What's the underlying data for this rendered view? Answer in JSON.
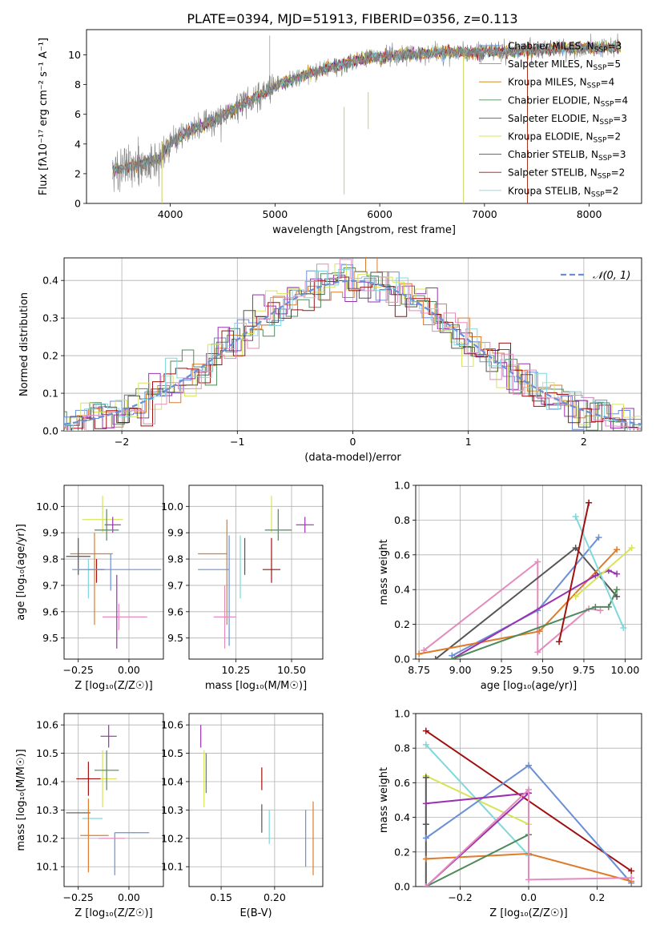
{
  "figure": {
    "title": "PLATE=0394, MJD=51913, FIBERID=0356, z=0.113",
    "series_colors": {
      "Chabrier MILES": "#6a8fd6",
      "Salpeter MILES": "#e07b2a",
      "Kroupa MILES": "#cc7a00",
      "Chabrier ELODIE": "#4f8a5b",
      "Salpeter ELODIE": "#9b30b0",
      "Kroupa ELODIE": "#d7e45a",
      "Chabrier STELIB": "#555555",
      "Salpeter STELIB": "#a01010",
      "Kroupa STELIB": "#7fd8dc",
      "pink": "#e48bbd"
    }
  },
  "chart_data": [
    {
      "id": "spectrum",
      "type": "line",
      "xlabel": "wavelength [Angstrom, rest frame]",
      "ylabel": "Flux [fλ10⁻¹⁷ erg cm⁻² s⁻¹ A⁻¹]",
      "xlim": [
        3200,
        8500
      ],
      "ylim": [
        0,
        11.7
      ],
      "xticks": [
        4000,
        5000,
        6000,
        7000,
        8000
      ],
      "yticks": [
        0,
        2,
        4,
        6,
        8,
        10
      ],
      "data_series": {
        "name": "data",
        "color": "#808080"
      },
      "continuum": {
        "x": [
          3450,
          3700,
          3900,
          4000,
          4200,
          4400,
          4700,
          4900,
          5000,
          5300,
          5600,
          5900,
          6200,
          6500,
          6800,
          7100,
          7400,
          7700,
          8000,
          8300
        ],
        "y": [
          2.3,
          2.6,
          3.0,
          4.1,
          4.9,
          5.5,
          6.7,
          7.4,
          7.9,
          8.7,
          9.3,
          9.8,
          10.0,
          10.1,
          10.2,
          10.2,
          10.3,
          10.4,
          10.5,
          10.5
        ]
      },
      "legend": [
        {
          "label": "Chabrier MILES, N",
          "sub": "SSP",
          "suffix": "=3"
        },
        {
          "label": "Salpeter MILES, N",
          "sub": "SSP",
          "suffix": "=5"
        },
        {
          "label": "Kroupa MILES, N",
          "sub": "SSP",
          "suffix": "=4"
        },
        {
          "label": "Chabrier ELODIE, N",
          "sub": "SSP",
          "suffix": "=4"
        },
        {
          "label": "Salpeter ELODIE, N",
          "sub": "SSP",
          "suffix": "=3"
        },
        {
          "label": "Kroupa ELODIE, N",
          "sub": "SSP",
          "suffix": "=2"
        },
        {
          "label": "Chabrier STELIB, N",
          "sub": "SSP",
          "suffix": "=3"
        },
        {
          "label": "Salpeter STELIB, N",
          "sub": "SSP",
          "suffix": "=2"
        },
        {
          "label": "Kroupa STELIB, N",
          "sub": "SSP",
          "suffix": "=2"
        }
      ],
      "legend_position": "upper-right",
      "grid": false
    },
    {
      "id": "residuals",
      "type": "histogram",
      "xlabel": "(data-model)/error",
      "ylabel": "Normed distribution",
      "xlim": [
        -2.5,
        2.5
      ],
      "ylim": [
        0,
        0.46
      ],
      "xticks": [
        -2,
        -1,
        0,
        1,
        2
      ],
      "yticks": [
        0.0,
        0.1,
        0.2,
        0.3,
        0.4
      ],
      "bin_width": 0.1,
      "reference_curve": {
        "label": "𝒩(0, 1)",
        "mean": 0,
        "sigma": 1,
        "color": "#6a8fd6",
        "style": "dashed"
      },
      "legend_position": "upper-right",
      "grid": true
    },
    {
      "id": "age-vs-Z",
      "type": "errorbar",
      "xlabel": "Z [log₁₀(Z/Z☉)]",
      "ylabel": "age  [log₁₀(age/yr)]",
      "xlim": [
        -0.32,
        0.17
      ],
      "ylim": [
        9.42,
        10.08
      ],
      "xticks": [
        -0.25,
        0.0
      ],
      "xticklabels": [
        "−0.25",
        "0.00"
      ],
      "yticks": [
        9.5,
        9.6,
        9.7,
        9.8,
        9.9,
        10.0
      ],
      "grid": true,
      "points": [
        {
          "s": "Kroupa ELODIE",
          "x": -0.13,
          "xerr": [
            0.1,
            0.1
          ],
          "y": 9.95,
          "yerr": [
            0.05,
            0.09
          ]
        },
        {
          "s": "Salpeter ELODIE",
          "x": -0.08,
          "xerr": [
            0.04,
            0.04
          ],
          "y": 9.93,
          "yerr": [
            0.03,
            0.03
          ]
        },
        {
          "s": "Chabrier ELODIE",
          "x": -0.11,
          "xerr": [
            0.06,
            0.06
          ],
          "y": 9.91,
          "yerr": [
            0.04,
            0.08
          ]
        },
        {
          "s": "Salpeter MILES",
          "x": -0.17,
          "xerr": [
            0.12,
            0.09
          ],
          "y": 9.82,
          "yerr": [
            0.27,
            0.08
          ]
        },
        {
          "s": "Chabrier STELIB",
          "x": -0.25,
          "xerr": [
            0.06,
            0.06
          ],
          "y": 9.81,
          "yerr": [
            0.07,
            0.07
          ]
        },
        {
          "s": "Salpeter STELIB",
          "x": -0.16,
          "xerr": [
            0.04,
            0.04
          ],
          "y": 9.76,
          "yerr": [
            0.05,
            0.04
          ]
        },
        {
          "s": "Kroupa STELIB",
          "x": -0.2,
          "xerr": [
            0.05,
            0.04
          ],
          "y": 9.76,
          "yerr": [
            0.11,
            0.04
          ]
        },
        {
          "s": "Chabrier MILES",
          "x": -0.09,
          "xerr": [
            0.19,
            0.25
          ],
          "y": 9.76,
          "yerr": [
            0.08,
            0.06
          ]
        },
        {
          "s": "pink",
          "x": -0.05,
          "xerr": [
            0.08,
            0.14
          ],
          "y": 9.58,
          "yerr": [
            0.05,
            0.05
          ]
        },
        {
          "s": "Salpeter ELODIE",
          "x": -0.06,
          "xerr": [
            0.0,
            0.0
          ],
          "y": 9.6,
          "yerr": [
            0.14,
            0.14
          ]
        }
      ]
    },
    {
      "id": "age-vs-mass",
      "type": "errorbar",
      "xlabel": "mass [log₁₀(M/M☉)]",
      "ylabel": "",
      "xlim": [
        10.04,
        10.64
      ],
      "ylim": [
        9.42,
        10.08
      ],
      "xticks": [
        10.25,
        10.5
      ],
      "xticklabels": [
        "10.25",
        "10.50"
      ],
      "yticks": [
        9.5,
        9.6,
        9.7,
        9.8,
        9.9,
        10.0
      ],
      "grid": true,
      "points": [
        {
          "s": "Kroupa ELODIE",
          "x": 10.41,
          "xerr": [
            0.0,
            0.0
          ],
          "y": 9.95,
          "yerr": [
            0.05,
            0.09
          ]
        },
        {
          "s": "Salpeter ELODIE",
          "x": 10.56,
          "xerr": [
            0.04,
            0.04
          ],
          "y": 9.93,
          "yerr": [
            0.03,
            0.03
          ]
        },
        {
          "s": "Chabrier ELODIE",
          "x": 10.44,
          "xerr": [
            0.06,
            0.06
          ],
          "y": 9.91,
          "yerr": [
            0.04,
            0.08
          ]
        },
        {
          "s": "Salpeter MILES",
          "x": 10.21,
          "xerr": [
            0.13,
            0.0
          ],
          "y": 9.82,
          "yerr": [
            0.27,
            0.13
          ]
        },
        {
          "s": "Chabrier STELIB",
          "x": 10.29,
          "xerr": [
            0.0,
            0.0
          ],
          "y": 9.81,
          "yerr": [
            0.07,
            0.07
          ]
        },
        {
          "s": "Salpeter STELIB",
          "x": 10.41,
          "xerr": [
            0.04,
            0.04
          ],
          "y": 9.76,
          "yerr": [
            0.05,
            0.12
          ]
        },
        {
          "s": "Kroupa STELIB",
          "x": 10.27,
          "xerr": [
            0.0,
            0.0
          ],
          "y": 9.76,
          "yerr": [
            0.11,
            0.13
          ]
        },
        {
          "s": "Chabrier MILES",
          "x": 10.22,
          "xerr": [
            0.14,
            0.0
          ],
          "y": 9.76,
          "yerr": [
            0.29,
            0.13
          ]
        },
        {
          "s": "pink",
          "x": 10.2,
          "xerr": [
            0.05,
            0.05
          ],
          "y": 9.58,
          "yerr": [
            0.12,
            0.12
          ]
        }
      ]
    },
    {
      "id": "weight-vs-age",
      "type": "line",
      "xlabel": "age  [log₁₀(age/yr)]",
      "ylabel": "mass weight",
      "xlim": [
        8.73,
        10.1
      ],
      "ylim": [
        0,
        1
      ],
      "xticks": [
        8.75,
        9.0,
        9.25,
        9.5,
        9.75,
        10.0
      ],
      "xticklabels": [
        "8.75",
        "9.00",
        "9.25",
        "9.50",
        "9.75",
        "10.00"
      ],
      "yticks": [
        0.0,
        0.2,
        0.4,
        0.6,
        0.8,
        1.0
      ],
      "grid": true,
      "series": [
        {
          "s": "pink",
          "x": [
            8.78,
            9.47,
            9.47,
            9.78,
            9.85
          ],
          "y": [
            0.05,
            0.56,
            0.04,
            0.29,
            0.28
          ]
        },
        {
          "s": "Chabrier STELIB",
          "x": [
            8.85,
            9.7,
            9.95
          ],
          "y": [
            0.0,
            0.64,
            0.36
          ]
        },
        {
          "s": "Chabrier MILES",
          "x": [
            8.95,
            9.47,
            9.84
          ],
          "y": [
            0.02,
            0.28,
            0.7
          ]
        },
        {
          "s": "Salpeter MILES",
          "x": [
            8.75,
            9.48,
            9.95
          ],
          "y": [
            0.03,
            0.16,
            0.63
          ]
        },
        {
          "s": "Salpeter ELODIE",
          "x": [
            8.95,
            9.82,
            9.9,
            9.95
          ],
          "y": [
            0.0,
            0.48,
            0.51,
            0.49
          ]
        },
        {
          "s": "Chabrier ELODIE",
          "x": [
            8.95,
            9.82,
            9.9,
            9.95
          ],
          "y": [
            0.0,
            0.3,
            0.3,
            0.4
          ]
        },
        {
          "s": "Kroupa ELODIE",
          "x": [
            9.7,
            10.04
          ],
          "y": [
            0.36,
            0.64
          ]
        },
        {
          "s": "Kroupa STELIB",
          "x": [
            9.7,
            9.99
          ],
          "y": [
            0.82,
            0.18
          ]
        },
        {
          "s": "Salpeter STELIB",
          "x": [
            9.6,
            9.78
          ],
          "y": [
            0.1,
            0.9
          ]
        }
      ]
    },
    {
      "id": "mass-vs-Z",
      "type": "errorbar",
      "xlabel": "Z [log₁₀(Z/Z☉)]",
      "ylabel": "mass [log₁₀(M/M☉)]",
      "xlim": [
        -0.32,
        0.17
      ],
      "ylim": [
        10.03,
        10.64
      ],
      "xticks": [
        -0.25,
        0.0
      ],
      "xticklabels": [
        "−0.25",
        "0.00"
      ],
      "yticks": [
        10.1,
        10.2,
        10.3,
        10.4,
        10.5,
        10.6
      ],
      "grid": true,
      "points": [
        {
          "s": "Salpeter ELODIE",
          "x": -0.1,
          "xerr": [
            0.04,
            0.04
          ],
          "y": 10.56,
          "yerr": [
            0.04,
            0.04
          ]
        },
        {
          "s": "Kroupa ELODIE",
          "x": -0.13,
          "xerr": [
            0.1,
            0.07
          ],
          "y": 10.41,
          "yerr": [
            0.1,
            0.1
          ]
        },
        {
          "s": "Chabrier ELODIE",
          "x": -0.11,
          "xerr": [
            0.06,
            0.06
          ],
          "y": 10.44,
          "yerr": [
            0.07,
            0.07
          ]
        },
        {
          "s": "Salpeter STELIB",
          "x": -0.2,
          "xerr": [
            0.06,
            0.06
          ],
          "y": 10.41,
          "yerr": [
            0.06,
            0.06
          ]
        },
        {
          "s": "Chabrier STELIB",
          "x": -0.25,
          "xerr": [
            0.06,
            0.06
          ],
          "y": 10.29,
          "yerr": [
            0.0,
            0.0
          ]
        },
        {
          "s": "Kroupa STELIB",
          "x": -0.18,
          "xerr": [
            0.05,
            0.05
          ],
          "y": 10.27,
          "yerr": [
            0.0,
            0.0
          ]
        },
        {
          "s": "Salpeter MILES",
          "x": -0.2,
          "xerr": [
            0.04,
            0.1
          ],
          "y": 10.21,
          "yerr": [
            0.13,
            0.13
          ]
        },
        {
          "s": "Chabrier MILES",
          "x": -0.07,
          "xerr": [
            0.0,
            0.17
          ],
          "y": 10.22,
          "yerr": [
            0.15,
            0.0
          ]
        },
        {
          "s": "pink",
          "x": -0.05,
          "xerr": [
            0.1,
            0.03
          ],
          "y": 10.2,
          "yerr": [
            0.0,
            0.0
          ]
        }
      ]
    },
    {
      "id": "mass-vs-ebv",
      "type": "errorbar",
      "xlabel": "E(B-V)",
      "ylabel": "",
      "xlim": [
        0.12,
        0.245
      ],
      "ylim": [
        10.03,
        10.64
      ],
      "xticks": [
        0.15,
        0.2
      ],
      "xticklabels": [
        "0.15",
        "0.20"
      ],
      "yticks": [
        10.1,
        10.2,
        10.3,
        10.4,
        10.5,
        10.6
      ],
      "grid": true,
      "points": [
        {
          "s": "Salpeter ELODIE",
          "x": 0.131,
          "xerr": [
            0,
            0
          ],
          "y": 10.56,
          "yerr": [
            0.04,
            0.04
          ]
        },
        {
          "s": "Kroupa ELODIE",
          "x": 0.134,
          "xerr": [
            0,
            0
          ],
          "y": 10.41,
          "yerr": [
            0.1,
            0.1
          ]
        },
        {
          "s": "Chabrier ELODIE",
          "x": 0.136,
          "xerr": [
            0,
            0
          ],
          "y": 10.43,
          "yerr": [
            0.07,
            0.07
          ]
        },
        {
          "s": "Salpeter STELIB",
          "x": 0.188,
          "xerr": [
            0,
            0
          ],
          "y": 10.41,
          "yerr": [
            0.04,
            0.04
          ]
        },
        {
          "s": "Chabrier STELIB",
          "x": 0.188,
          "xerr": [
            0,
            0
          ],
          "y": 10.27,
          "yerr": [
            0.05,
            0.05
          ]
        },
        {
          "s": "Kroupa STELIB",
          "x": 0.195,
          "xerr": [
            0,
            0
          ],
          "y": 10.24,
          "yerr": [
            0.06,
            0.06
          ]
        },
        {
          "s": "Chabrier MILES",
          "x": 0.229,
          "xerr": [
            0,
            0
          ],
          "y": 10.2,
          "yerr": [
            0.1,
            0.1
          ]
        },
        {
          "s": "Salpeter MILES",
          "x": 0.236,
          "xerr": [
            0,
            0
          ],
          "y": 10.2,
          "yerr": [
            0.13,
            0.13
          ]
        }
      ]
    },
    {
      "id": "weight-vs-Z",
      "type": "line",
      "xlabel": "Z [log₁₀(Z/Z☉)]",
      "ylabel": "mass weight",
      "xlim": [
        -0.33,
        0.33
      ],
      "ylim": [
        0,
        1
      ],
      "xticks": [
        -0.2,
        0.0,
        0.2
      ],
      "xticklabels": [
        "−0.2",
        "0.0",
        "0.2"
      ],
      "yticks": [
        0.0,
        0.2,
        0.4,
        0.6,
        0.8,
        1.0
      ],
      "grid": true,
      "series": [
        {
          "s": "Salpeter STELIB",
          "x": [
            -0.3,
            0.3
          ],
          "y": [
            0.9,
            0.09
          ]
        },
        {
          "s": "Kroupa STELIB",
          "x": [
            -0.3,
            0.0
          ],
          "y": [
            0.82,
            0.18
          ]
        },
        {
          "s": "Kroupa ELODIE",
          "x": [
            -0.3,
            0.0
          ],
          "y": [
            0.64,
            0.36
          ]
        },
        {
          "s": "Chabrier STELIB",
          "x": [
            -0.3,
            -0.3,
            -0.3
          ],
          "y": [
            0.63,
            0.36,
            0.0
          ]
        },
        {
          "s": "Chabrier MILES",
          "x": [
            -0.3,
            0.0,
            0.3
          ],
          "y": [
            0.28,
            0.7,
            0.02
          ]
        },
        {
          "s": "Salpeter MILES",
          "x": [
            -0.3,
            0.0,
            0.3
          ],
          "y": [
            0.16,
            0.19,
            0.03
          ]
        },
        {
          "s": "Salpeter ELODIE",
          "x": [
            -0.3,
            0.0,
            -0.3
          ],
          "y": [
            0.0,
            0.54,
            0.48
          ]
        },
        {
          "s": "Chabrier ELODIE",
          "x": [
            -0.3,
            0.0
          ],
          "y": [
            0.0,
            0.3
          ]
        },
        {
          "s": "pink",
          "x": [
            -0.3,
            0.0,
            0.0,
            0.3
          ],
          "y": [
            0.0,
            0.56,
            0.04,
            0.05
          ]
        }
      ]
    }
  ]
}
